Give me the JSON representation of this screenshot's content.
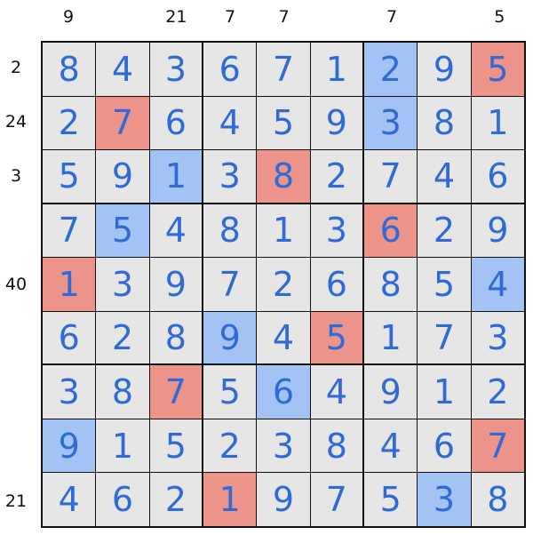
{
  "column_clues": [
    "9",
    "",
    "21",
    "7",
    "7",
    "",
    "7",
    "",
    "5"
  ],
  "row_clues": [
    "2",
    "24",
    "3",
    "",
    "40",
    "",
    "",
    "",
    "21"
  ],
  "grid": [
    [
      8,
      4,
      3,
      6,
      7,
      1,
      2,
      9,
      5
    ],
    [
      2,
      7,
      6,
      4,
      5,
      9,
      3,
      8,
      1
    ],
    [
      5,
      9,
      1,
      3,
      8,
      2,
      7,
      4,
      6
    ],
    [
      7,
      5,
      4,
      8,
      1,
      3,
      6,
      2,
      9
    ],
    [
      1,
      3,
      9,
      7,
      2,
      6,
      8,
      5,
      4
    ],
    [
      6,
      2,
      8,
      9,
      4,
      5,
      1,
      7,
      3
    ],
    [
      3,
      8,
      7,
      5,
      6,
      4,
      9,
      1,
      2
    ],
    [
      9,
      1,
      5,
      2,
      3,
      8,
      4,
      6,
      7
    ],
    [
      4,
      6,
      2,
      1,
      9,
      7,
      5,
      3,
      8
    ]
  ],
  "highlights": [
    "......B R.",
    ".R....B..",
    "..B.R....",
    ".B....R..",
    "R.......B",
    "...B.R...",
    "..R.B....",
    "B.......R",
    "...R...B."
  ],
  "colors": {
    "cell": "#e6e6e6",
    "blue": "#a3c3f5",
    "red": "#ec938a",
    "digit": "#2f6ad8"
  }
}
